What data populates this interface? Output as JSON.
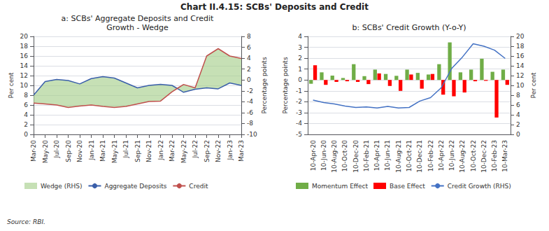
{
  "title": "Chart II.4.15: SCBs' Deposits and Credit",
  "annotations": [
    "Source: RBI."
  ],
  "chart_data": [
    {
      "type": "line",
      "title": "a: SCBs' Aggregate Deposits and Credit\nGrowth - Wedge",
      "categories": [
        "Mar-20",
        "May-20",
        "Jul-20",
        "Sep-20",
        "Nov-20",
        "Jan-21",
        "Mar-21",
        "May-21",
        "Jul-21",
        "Sep-21",
        "Nov-21",
        "Jan-22",
        "Mar-22",
        "May-22",
        "Jul-22",
        "Sep-22",
        "Nov-22",
        "Jan-23",
        "Mar-23"
      ],
      "ylabel": "Per cent",
      "y2label": "Percentage points",
      "ylim": [
        0,
        20
      ],
      "yticks": [
        0,
        2,
        4,
        6,
        8,
        10,
        12,
        14,
        16,
        18,
        20
      ],
      "y2lim": [
        -10,
        8
      ],
      "y2ticks": [
        -10,
        -8,
        -6,
        -4,
        -2,
        0,
        2,
        4,
        6,
        8
      ],
      "grid": true,
      "legend": "bottom",
      "series": [
        {
          "name": "Wedge (RHS)",
          "type": "area",
          "color": "#a8d08d"
        },
        {
          "name": "Aggregate Deposits",
          "type": "line",
          "color": "#3a5faa",
          "values": [
            8.0,
            10.8,
            11.2,
            11.0,
            10.3,
            11.4,
            11.8,
            11.5,
            10.5,
            9.5,
            10.0,
            10.2,
            10.0,
            8.6,
            9.2,
            9.5,
            9.3,
            10.5,
            10.0
          ]
        },
        {
          "name": "Credit",
          "type": "line",
          "color": "#c0504d",
          "values": [
            6.4,
            6.2,
            6.0,
            5.5,
            5.8,
            6.0,
            5.7,
            5.5,
            5.7,
            6.2,
            6.7,
            6.8,
            8.7,
            10.2,
            9.5,
            16.0,
            17.5,
            16.0,
            15.5
          ]
        }
      ]
    },
    {
      "type": "bar",
      "title": "b: SCBs' Credit Growth (Y-o-Y)",
      "categories": [
        "10-Apr-20",
        "10-Jun-20",
        "10-Aug-20",
        "10-Oct-20",
        "10-Dec-20",
        "10-Feb-21",
        "10-Apr-21",
        "10-Jun-21",
        "10-Aug-21",
        "10-Oct-21",
        "10-Dec-21",
        "10-Feb-22",
        "10-Apr-22",
        "10-Jun-22",
        "10-Aug-22",
        "10-Oct-22",
        "10-Dec-22",
        "10-Feb-23",
        "10-Mar-23"
      ],
      "ylabel": "Percentage points",
      "y2label": "Per cent",
      "ylim": [
        -5,
        4
      ],
      "yticks": [
        -5,
        -4,
        -3,
        -2,
        -1,
        0,
        1,
        2,
        3,
        4
      ],
      "y2lim": [
        0,
        20
      ],
      "y2ticks": [
        0,
        2,
        4,
        6,
        8,
        10,
        12,
        14,
        16,
        18,
        20
      ],
      "grid": true,
      "legend": "bottom",
      "series": [
        {
          "name": "Momentum Effect",
          "type": "bar",
          "color": "#70ad47",
          "values": [
            -0.35,
            0.7,
            0.4,
            0.18,
            1.45,
            0.35,
            0.95,
            0.55,
            0.38,
            0.95,
            0.65,
            0.5,
            1.45,
            3.45,
            0.7,
            0.95,
            1.95,
            0.75,
            0.95
          ]
        },
        {
          "name": "Base Effect",
          "type": "bar",
          "color": "#ff0000",
          "values": [
            1.35,
            -0.45,
            -0.18,
            -0.12,
            -0.18,
            -0.38,
            0.6,
            -0.55,
            -1.0,
            0.5,
            -0.8,
            0.55,
            -1.35,
            -1.5,
            -1.15,
            -0.12,
            -0.08,
            -3.45,
            -0.45
          ]
        },
        {
          "name": "Credit Growth (RHS)",
          "type": "line",
          "color": "#4472c4",
          "axis": "y2",
          "values": [
            7.0,
            6.5,
            6.2,
            5.8,
            5.5,
            5.6,
            5.4,
            5.7,
            5.4,
            5.5,
            6.8,
            7.5,
            9.5,
            13.5,
            15.8,
            18.5,
            18.0,
            17.2,
            15.5
          ]
        }
      ]
    }
  ]
}
